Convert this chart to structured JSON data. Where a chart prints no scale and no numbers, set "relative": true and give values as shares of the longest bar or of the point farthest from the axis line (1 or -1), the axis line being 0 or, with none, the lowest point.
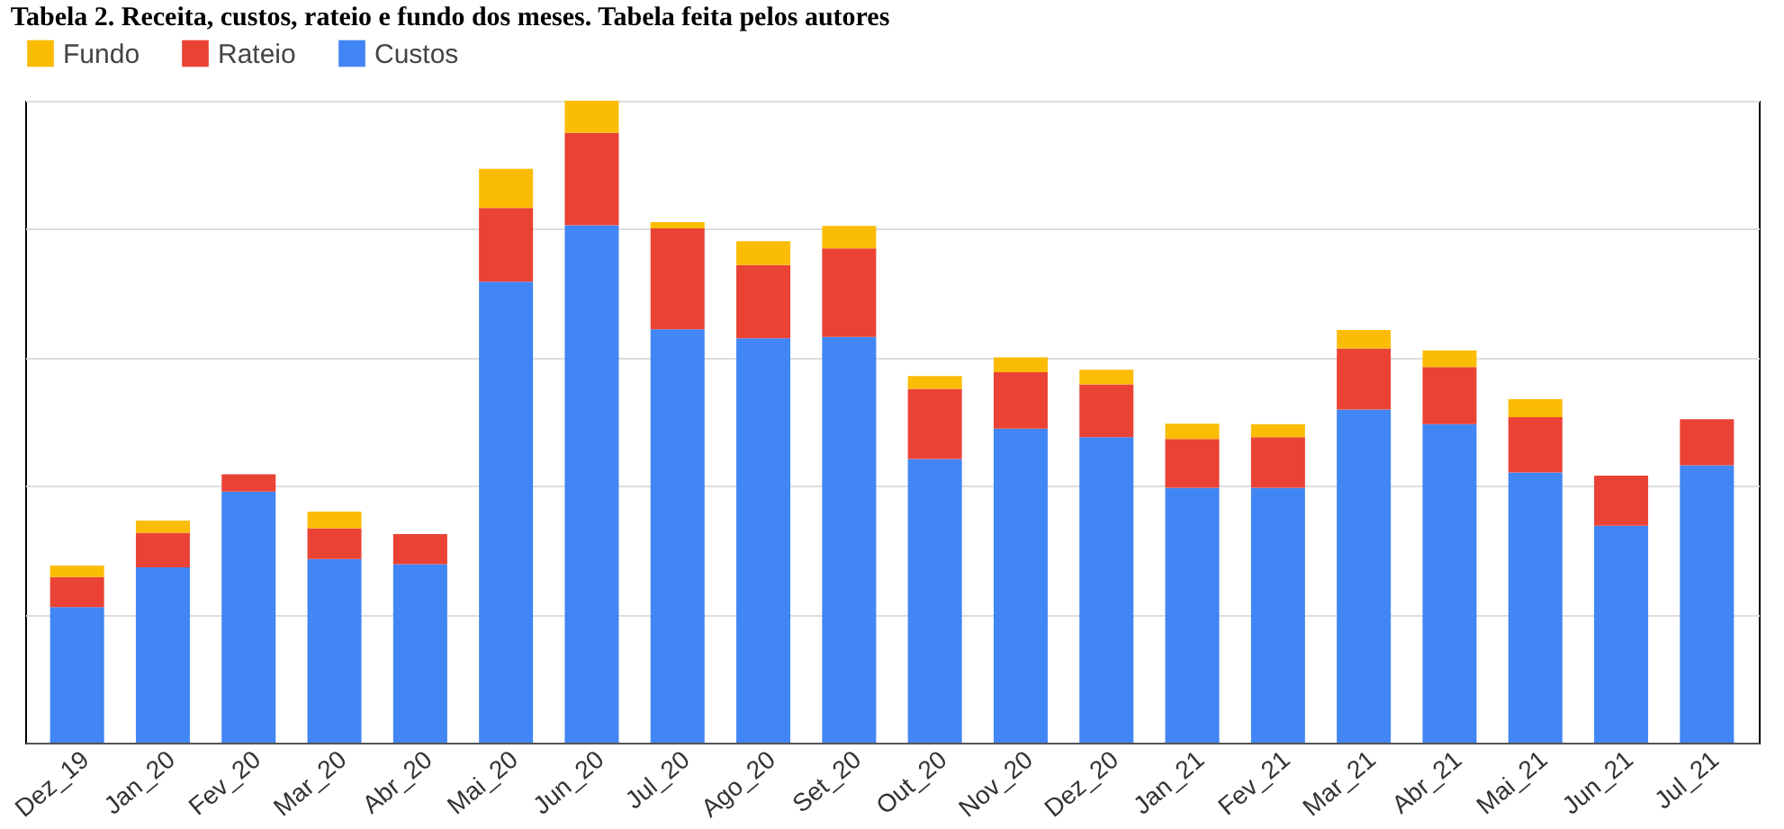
{
  "chart_data": {
    "type": "bar",
    "title": "Tabela 2. Receita, custos, rateio e fundo dos meses. Tabela feita pelos autores",
    "stacked": true,
    "relative": true,
    "grid": "y",
    "legend": "top",
    "categories": [
      "Dez_19",
      "Jan_20",
      "Fev_20",
      "Mar_20",
      "Abr_20",
      "Mai_20",
      "Jun_20",
      "Jul_20",
      "Ago_20",
      "Set_20",
      "Out_20",
      "Nov_20",
      "Dez_20",
      "Jan_21",
      "Fev_21",
      "Mar_21",
      "Abr_21",
      "Mai_21",
      "Jun_21",
      "Jul_21"
    ],
    "series": [
      {
        "name": "Custos",
        "color": "#4285f4",
        "values": [
          0.211,
          0.273,
          0.391,
          0.286,
          0.278,
          0.718,
          0.806,
          0.644,
          0.63,
          0.632,
          0.442,
          0.489,
          0.476,
          0.397,
          0.397,
          0.519,
          0.496,
          0.421,
          0.338,
          0.432
        ]
      },
      {
        "name": "Rateio",
        "color": "#ea4335",
        "values": [
          0.047,
          0.054,
          0.027,
          0.048,
          0.047,
          0.115,
          0.144,
          0.157,
          0.114,
          0.138,
          0.109,
          0.088,
          0.082,
          0.076,
          0.079,
          0.095,
          0.089,
          0.086,
          0.078,
          0.072
        ]
      },
      {
        "name": "Fundo",
        "color": "#fbbc04",
        "values": [
          0.018,
          0.019,
          0,
          0.026,
          0,
          0.061,
          0.05,
          0.01,
          0.037,
          0.035,
          0.02,
          0.023,
          0.023,
          0.024,
          0.02,
          0.029,
          0.026,
          0.028,
          0,
          0
        ]
      }
    ]
  }
}
